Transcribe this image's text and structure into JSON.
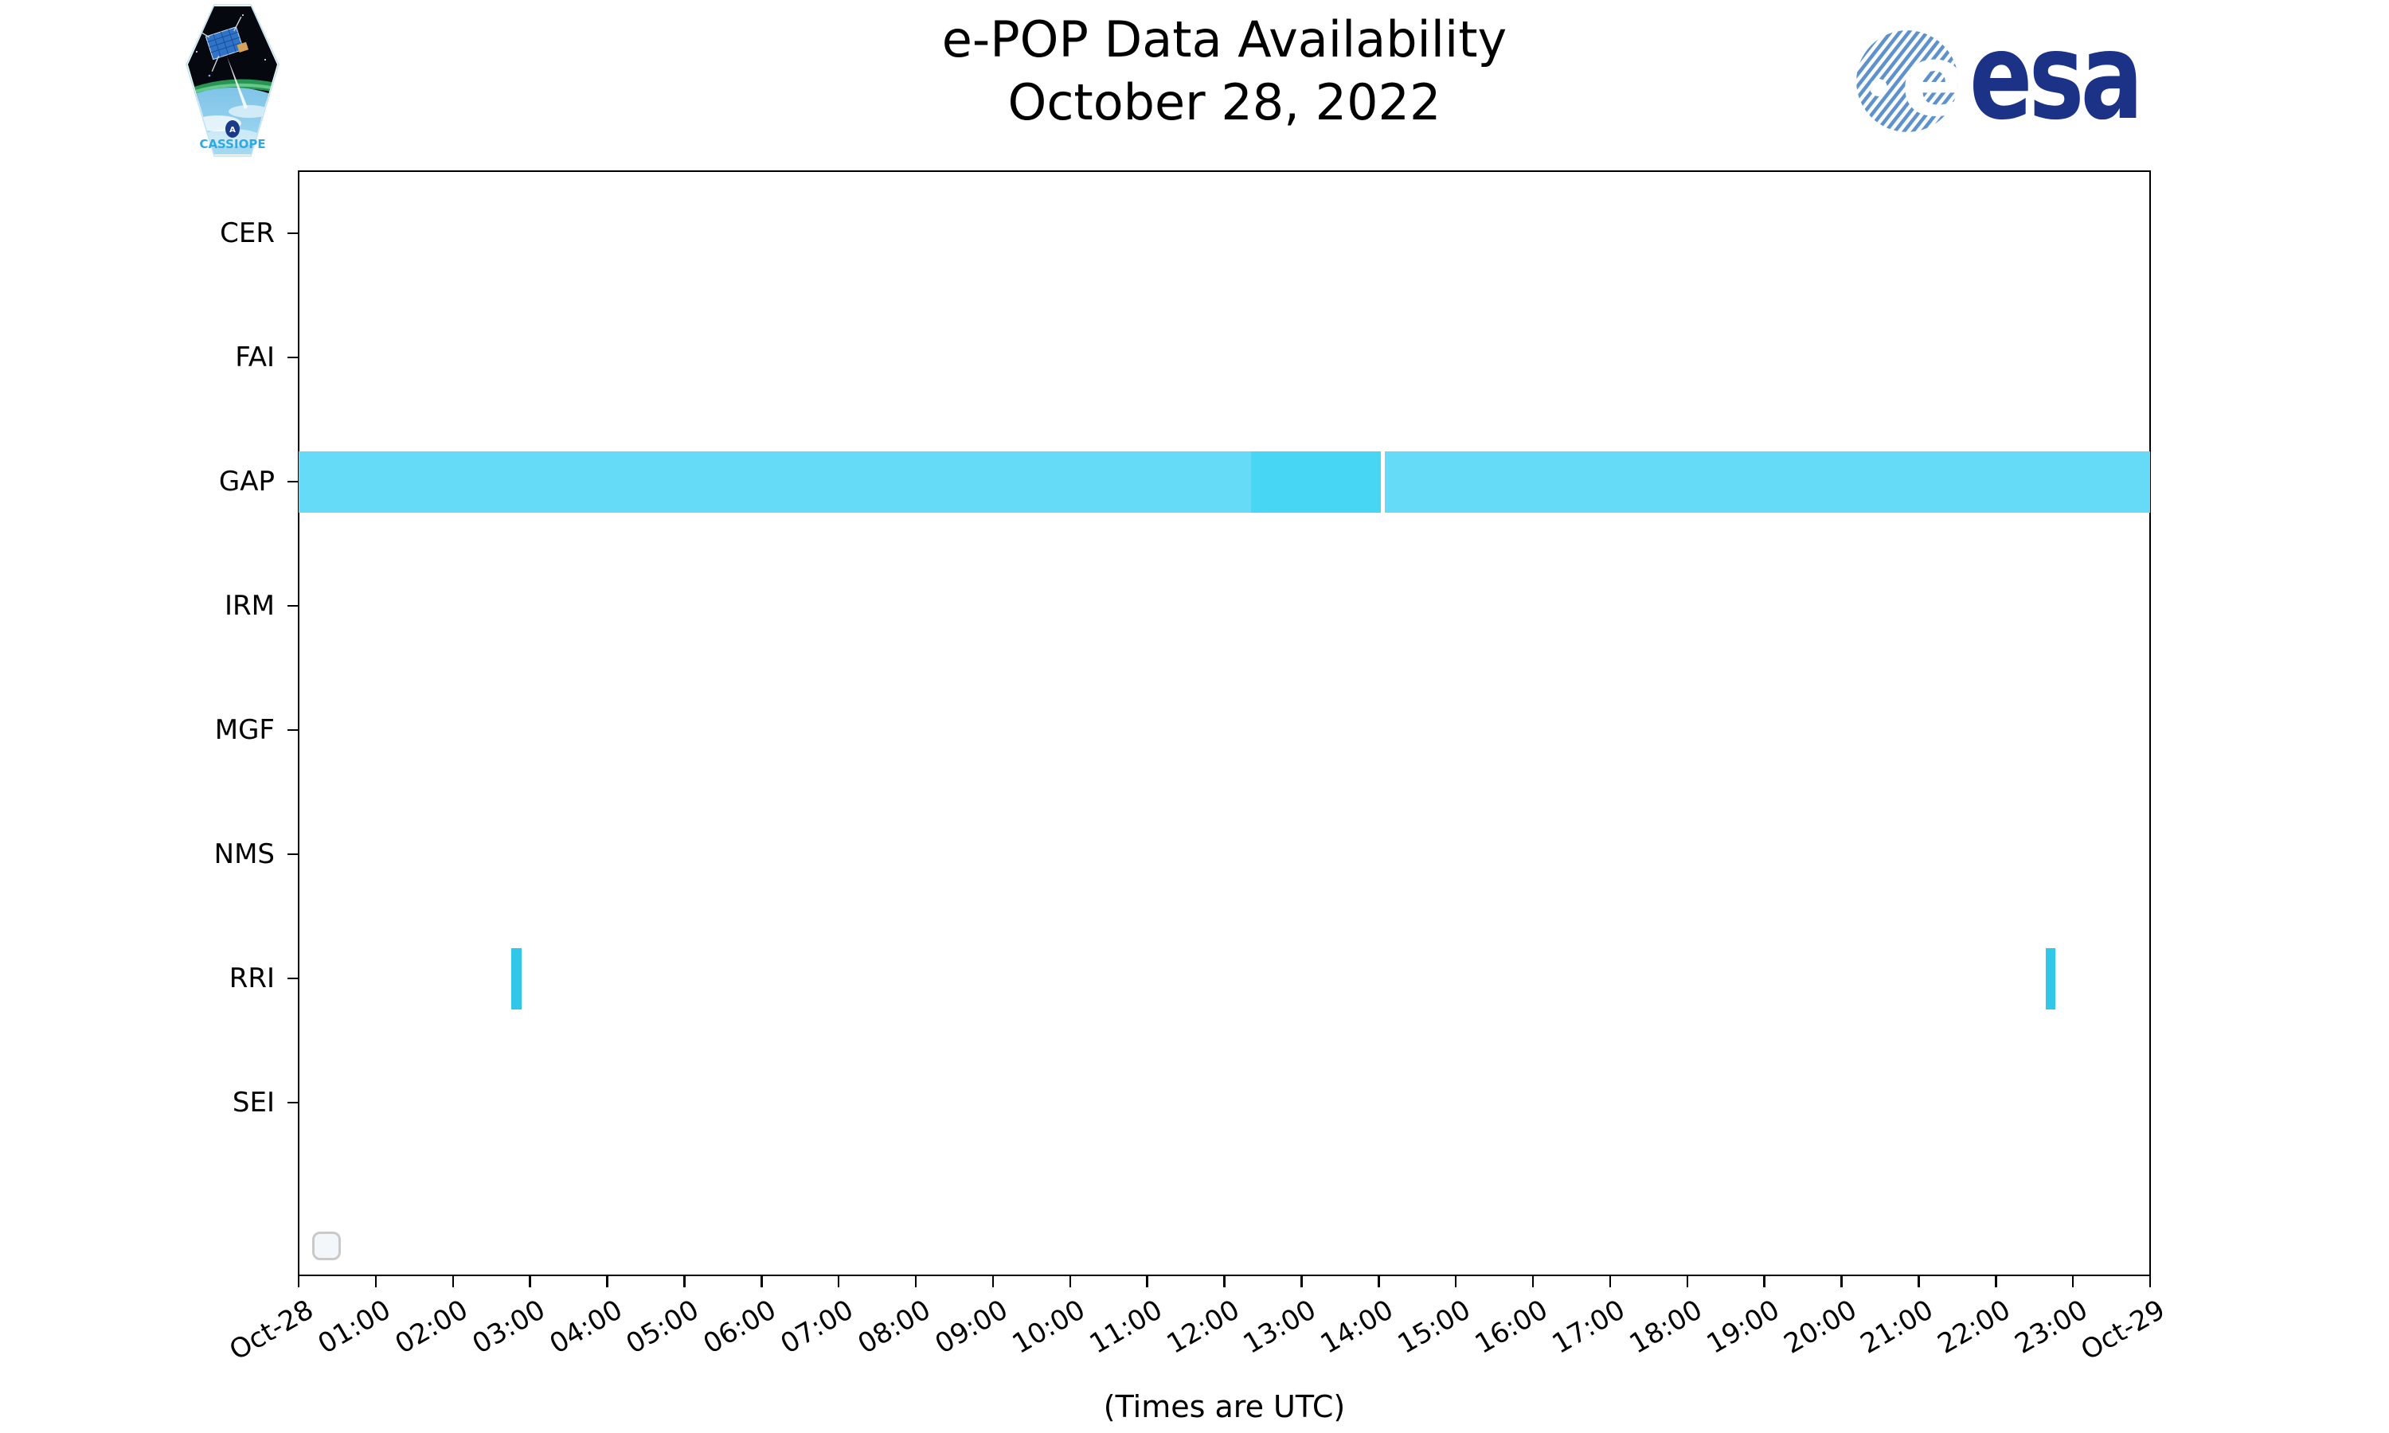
{
  "header": {
    "title_line1": "e-POP Data Availability",
    "title_line2": "October 28, 2022",
    "cassiope_label": "CASSIOPE",
    "esa_wordmark": "esa",
    "esa_globe_letter": "e"
  },
  "footnote": "(Times are UTC)",
  "colors": {
    "light": "#65dbf7",
    "dark": "#48d6f5",
    "rri": "#31c7e8",
    "spine": "#000000",
    "esa_blue": "#1b3286",
    "esa_stripe": "#5e92cc",
    "cassiope_text": "#2fa9e2",
    "legend_edge": "#c9c9c9",
    "legend_fill": "#f4f7f9"
  },
  "chart_data": {
    "type": "timeline",
    "title": "e-POP Data Availability",
    "subtitle": "October 28, 2022",
    "x_axis": {
      "start": "Oct-28 00:00 UTC",
      "end": "Oct-29 00:00 UTC",
      "hours_span": 24,
      "tick_labels": [
        "Oct-28",
        "01:00",
        "02:00",
        "03:00",
        "04:00",
        "05:00",
        "06:00",
        "07:00",
        "08:00",
        "09:00",
        "10:00",
        "11:00",
        "12:00",
        "13:00",
        "14:00",
        "15:00",
        "16:00",
        "17:00",
        "18:00",
        "19:00",
        "20:00",
        "21:00",
        "22:00",
        "23:00",
        "Oct-29"
      ],
      "note": "(Times are UTC)"
    },
    "y_categories": [
      "CER",
      "FAI",
      "GAP",
      "IRM",
      "MGF",
      "NMS",
      "RRI",
      "SEI"
    ],
    "segments": [
      {
        "instrument": "GAP",
        "start": "00:00",
        "end": "14:02",
        "start_h": 0.0,
        "end_h": 14.03,
        "shade": "light"
      },
      {
        "instrument": "GAP",
        "start": "12:21",
        "end": "14:02",
        "start_h": 12.35,
        "end_h": 14.03,
        "shade": "dark"
      },
      {
        "instrument": "GAP",
        "start": "14:05",
        "end": "24:00",
        "start_h": 14.08,
        "end_h": 24.0,
        "shade": "light"
      },
      {
        "instrument": "RRI",
        "start": "02:46",
        "end": "02:53",
        "start_h": 2.76,
        "end_h": 2.89,
        "shade": "rri"
      },
      {
        "instrument": "RRI",
        "start": "22:39",
        "end": "22:46",
        "start_h": 22.65,
        "end_h": 22.77,
        "shade": "rri"
      }
    ],
    "legend": {
      "visible": true,
      "entries": []
    },
    "grid": false,
    "legend_position": "lower left"
  }
}
